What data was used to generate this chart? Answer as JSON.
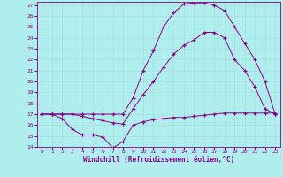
{
  "background_color": "#b0eeee",
  "grid_color": "#ccffff",
  "line_color": "#880088",
  "xlabel": "Windchill (Refroidissement éolien,°C)",
  "xlim_min": -0.5,
  "xlim_max": 23.5,
  "ylim_min": 14,
  "ylim_max": 27.3,
  "xticks": [
    0,
    1,
    2,
    3,
    4,
    5,
    6,
    7,
    8,
    9,
    10,
    11,
    12,
    13,
    14,
    15,
    16,
    17,
    18,
    19,
    20,
    21,
    22,
    23
  ],
  "yticks": [
    14,
    15,
    16,
    17,
    18,
    19,
    20,
    21,
    22,
    23,
    24,
    25,
    26,
    27
  ],
  "line1_x": [
    0,
    1,
    2,
    3,
    4,
    5,
    6,
    7,
    8,
    9,
    10,
    11,
    12,
    13,
    14,
    15,
    16,
    17,
    18,
    19,
    20,
    21,
    22,
    23
  ],
  "line1_y": [
    17.0,
    17.0,
    16.6,
    15.6,
    15.1,
    15.1,
    14.9,
    13.9,
    14.5,
    16.0,
    16.3,
    16.5,
    16.6,
    16.7,
    16.7,
    16.8,
    16.9,
    17.0,
    17.1,
    17.1,
    17.1,
    17.1,
    17.1,
    17.1
  ],
  "line2_x": [
    0,
    1,
    2,
    3,
    4,
    5,
    6,
    7,
    8,
    9,
    10,
    11,
    12,
    13,
    14,
    15,
    16,
    17,
    18,
    19,
    20,
    21,
    22,
    23
  ],
  "line2_y": [
    17.0,
    17.0,
    17.0,
    17.0,
    16.8,
    16.6,
    16.4,
    16.2,
    16.1,
    17.5,
    18.8,
    20.0,
    21.3,
    22.5,
    23.3,
    23.8,
    24.5,
    24.5,
    24.0,
    22.0,
    21.0,
    19.5,
    17.5,
    17.0
  ],
  "line3_x": [
    0,
    1,
    2,
    3,
    4,
    5,
    6,
    7,
    8,
    9,
    10,
    11,
    12,
    13,
    14,
    15,
    16,
    17,
    18,
    19,
    20,
    21,
    22,
    23
  ],
  "line3_y": [
    17.0,
    17.0,
    17.0,
    17.0,
    17.0,
    17.0,
    17.0,
    17.0,
    17.0,
    18.5,
    21.0,
    22.8,
    25.0,
    26.3,
    27.1,
    27.2,
    27.2,
    27.0,
    26.5,
    25.0,
    23.5,
    22.0,
    20.0,
    17.0
  ]
}
